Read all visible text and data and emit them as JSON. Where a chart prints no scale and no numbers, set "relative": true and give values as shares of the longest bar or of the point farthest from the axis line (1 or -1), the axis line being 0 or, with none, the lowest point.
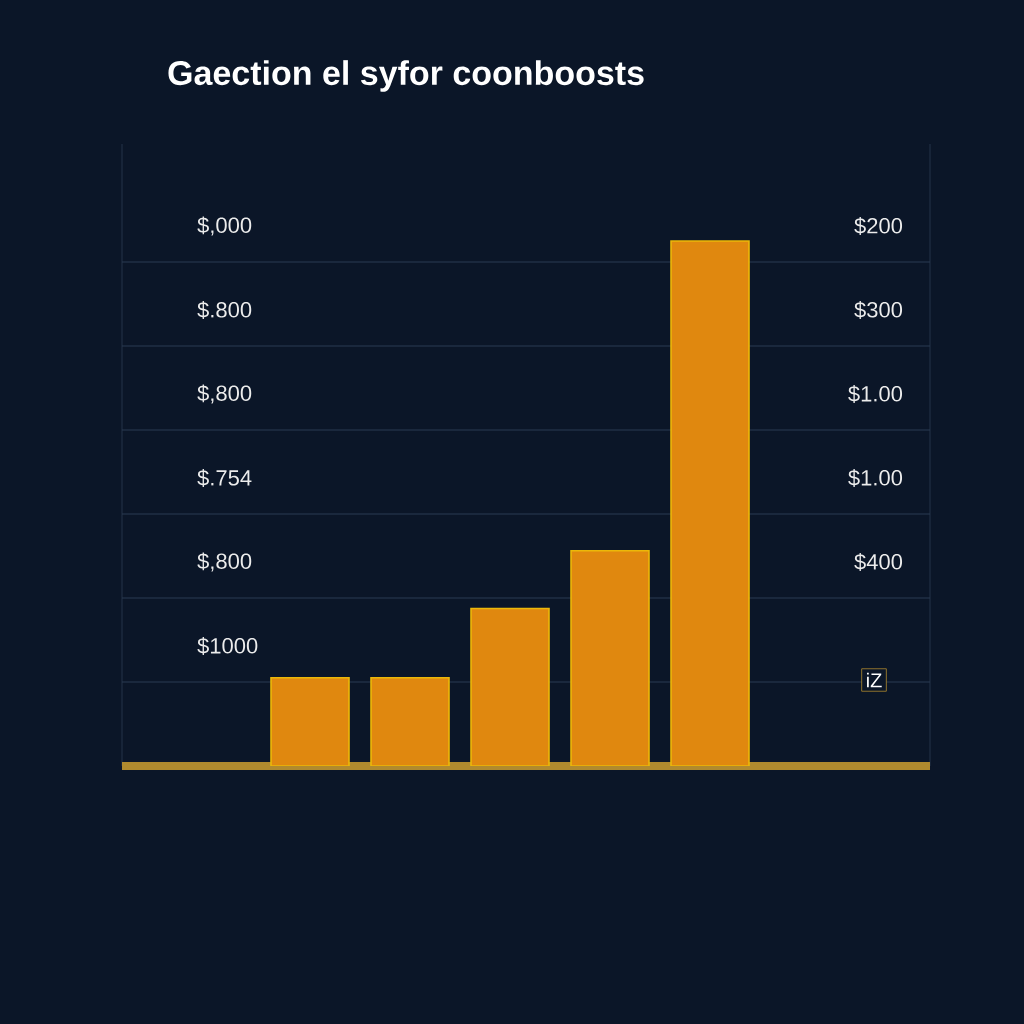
{
  "chart_data": {
    "type": "bar",
    "title": "Gaection el syfor coonboosts",
    "categories": [
      null,
      null,
      null,
      null,
      null
    ],
    "values": [
      0.168,
      0.168,
      0.3,
      0.41,
      1
    ],
    "relative": true,
    "color": "#e0880f",
    "grid": "y",
    "annotations": [
      "$,000",
      "$.800",
      "$,800",
      "$.754",
      "$,800",
      "$1000",
      "$200",
      "$300",
      "$1.00",
      "$1.00",
      "$400",
      "iZ"
    ]
  }
}
